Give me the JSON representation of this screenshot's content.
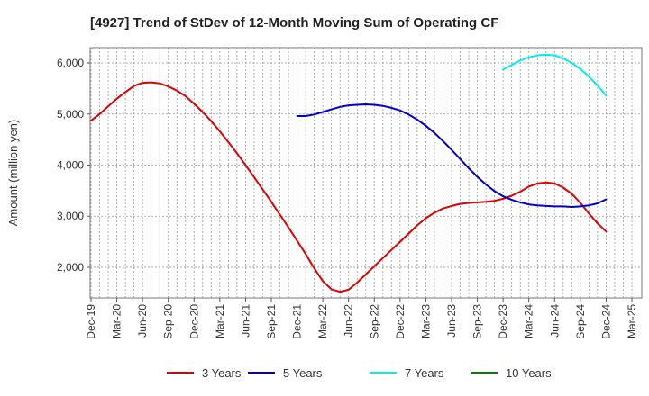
{
  "chart_data": {
    "type": "line",
    "title": "[4927]  Trend of StDev of 12-Month Moving Sum of Operating CF",
    "xlabel": "",
    "ylabel": "Amount (million yen)",
    "ylim": [
      1400,
      6300
    ],
    "yticks": [
      2000,
      3000,
      4000,
      5000,
      6000
    ],
    "ytick_labels": [
      "2,000",
      "3,000",
      "4,000",
      "5,000",
      "6,000"
    ],
    "xtick_labels": [
      "Dec-19",
      "Mar-20",
      "Jun-20",
      "Sep-20",
      "Dec-20",
      "Mar-21",
      "Jun-21",
      "Sep-21",
      "Dec-21",
      "Mar-22",
      "Jun-22",
      "Sep-22",
      "Dec-22",
      "Mar-23",
      "Jun-23",
      "Sep-23",
      "Dec-23",
      "Mar-24",
      "Jun-24",
      "Sep-24",
      "Dec-24",
      "Mar-25"
    ],
    "grid": true,
    "legend_position": "bottom",
    "series": [
      {
        "name": "3 Years",
        "color": "#dd0000",
        "x": [
          "2019-12",
          "2020-01",
          "2020-02",
          "2020-03",
          "2020-04",
          "2020-05",
          "2020-06",
          "2020-07",
          "2020-08",
          "2020-09",
          "2020-10",
          "2020-11",
          "2020-12",
          "2021-01",
          "2021-02",
          "2021-03",
          "2021-04",
          "2021-05",
          "2021-06",
          "2021-07",
          "2021-08",
          "2021-09",
          "2021-10",
          "2021-11",
          "2021-12",
          "2022-01",
          "2022-02",
          "2022-03",
          "2022-04",
          "2022-05",
          "2022-06",
          "2022-07",
          "2022-08",
          "2022-09",
          "2022-10",
          "2022-11",
          "2022-12",
          "2023-01",
          "2023-02",
          "2023-03",
          "2023-04",
          "2023-05",
          "2023-06",
          "2023-07",
          "2023-08",
          "2023-09",
          "2023-10",
          "2023-11",
          "2023-12",
          "2024-01",
          "2024-02",
          "2024-03",
          "2024-04",
          "2024-05",
          "2024-06",
          "2024-07",
          "2024-08",
          "2024-09",
          "2024-10",
          "2024-11",
          "2024-12"
        ],
        "values": [
          4870,
          5000,
          5150,
          5300,
          5430,
          5550,
          5610,
          5620,
          5600,
          5540,
          5460,
          5350,
          5200,
          5040,
          4860,
          4660,
          4450,
          4230,
          4000,
          3760,
          3520,
          3280,
          3030,
          2780,
          2520,
          2260,
          1980,
          1730,
          1570,
          1520,
          1560,
          1700,
          1860,
          2020,
          2180,
          2340,
          2500,
          2660,
          2820,
          2960,
          3070,
          3150,
          3200,
          3240,
          3260,
          3270,
          3280,
          3300,
          3340,
          3400,
          3480,
          3580,
          3640,
          3660,
          3640,
          3560,
          3440,
          3260,
          3050,
          2860,
          2700
        ]
      },
      {
        "name": "5 Years",
        "color": "#0000cc",
        "x": [
          "2021-12",
          "2022-01",
          "2022-02",
          "2022-03",
          "2022-04",
          "2022-05",
          "2022-06",
          "2022-07",
          "2022-08",
          "2022-09",
          "2022-10",
          "2022-11",
          "2022-12",
          "2023-01",
          "2023-02",
          "2023-03",
          "2023-04",
          "2023-05",
          "2023-06",
          "2023-07",
          "2023-08",
          "2023-09",
          "2023-10",
          "2023-11",
          "2023-12",
          "2024-01",
          "2024-02",
          "2024-03",
          "2024-04",
          "2024-05",
          "2024-06",
          "2024-07",
          "2024-08",
          "2024-09",
          "2024-10",
          "2024-11",
          "2024-12"
        ],
        "values": [
          4960,
          4960,
          4990,
          5040,
          5090,
          5140,
          5170,
          5180,
          5190,
          5180,
          5160,
          5120,
          5070,
          4990,
          4890,
          4770,
          4630,
          4470,
          4300,
          4120,
          3940,
          3770,
          3620,
          3490,
          3390,
          3320,
          3270,
          3230,
          3210,
          3200,
          3190,
          3190,
          3180,
          3190,
          3210,
          3250,
          3330
        ]
      },
      {
        "name": "7 Years",
        "color": "#00eeee",
        "x": [
          "2023-12",
          "2024-01",
          "2024-02",
          "2024-03",
          "2024-04",
          "2024-05",
          "2024-06",
          "2024-07",
          "2024-08",
          "2024-09",
          "2024-10",
          "2024-11",
          "2024-12"
        ],
        "values": [
          5870,
          5960,
          6050,
          6110,
          6150,
          6160,
          6150,
          6090,
          6000,
          5880,
          5730,
          5560,
          5360
        ]
      },
      {
        "name": "10 Years",
        "color": "#008000",
        "x": [],
        "values": []
      }
    ]
  }
}
